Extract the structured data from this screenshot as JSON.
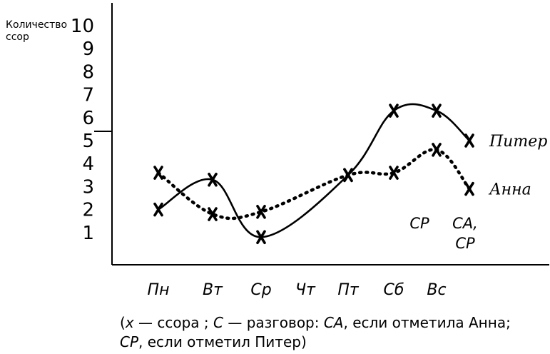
{
  "chart_data": {
    "type": "line",
    "ylabel": "Количество ссор",
    "ylabel_lines": [
      "Количество",
      "ссор"
    ],
    "ylim": [
      0,
      10
    ],
    "yticks": [
      "1",
      "2",
      "3",
      "4",
      "5",
      "6",
      "7",
      "8",
      "9",
      "10"
    ],
    "categories": [
      "Пн",
      "Вт",
      "Ср",
      "Чт",
      "Пт",
      "Сб",
      "Вс"
    ],
    "series": [
      {
        "name": "Питер",
        "style": "solid",
        "x": [
          "Пн",
          "Вт",
          "Ср",
          "Пт",
          "Сб",
          "Вс",
          "после Вс"
        ],
        "values": [
          2,
          3.3,
          0.8,
          3.5,
          6.3,
          6.3,
          5.0
        ]
      },
      {
        "name": "Анна",
        "style": "dotted",
        "x": [
          "Пн",
          "Вт",
          "Ср",
          "Пт",
          "Сб",
          "Вс",
          "после Вс"
        ],
        "values": [
          3.6,
          1.8,
          1.9,
          3.5,
          3.6,
          4.6,
          2.9
        ]
      }
    ],
    "annotations": [
      {
        "text_lines": [
          "СР"
        ]
      },
      {
        "text_lines": [
          "СА,",
          "СР"
        ]
      }
    ],
    "caption_lines": [
      [
        {
          "t": "(",
          "i": false
        },
        {
          "t": "x",
          "i": true
        },
        {
          "t": " — ссора ; ",
          "i": false
        },
        {
          "t": "С",
          "i": true
        },
        {
          "t": " — разговор: ",
          "i": false
        },
        {
          "t": "СА",
          "i": true
        },
        {
          "t": ", если отметила Анна;",
          "i": false
        }
      ],
      [
        {
          "t": "СР",
          "i": true
        },
        {
          "t": ", если отметил Питер)",
          "i": false
        }
      ]
    ],
    "colors": {
      "ink": "#000000",
      "background": "#ffffff"
    }
  }
}
